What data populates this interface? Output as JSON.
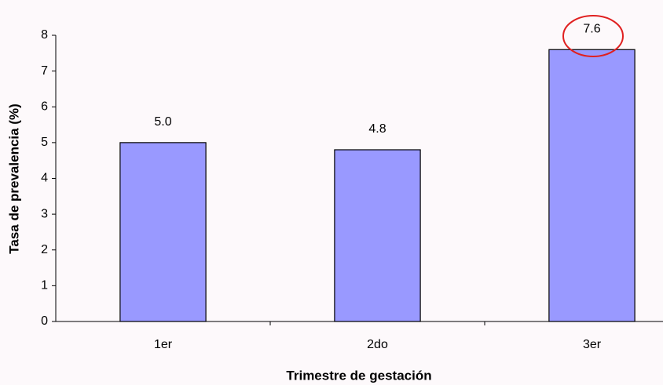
{
  "chart_data": {
    "type": "bar",
    "categories": [
      "1er",
      "2do",
      "3er"
    ],
    "values": [
      5.0,
      4.8,
      7.6
    ],
    "value_labels": [
      "5.0",
      "4.8",
      "7.6"
    ],
    "color": "#9999ff",
    "x_label": "Trimestre de gestación",
    "y_label": "Tasa de prevalencia (%)",
    "ylim": [
      0,
      8
    ],
    "yticks": [
      0,
      1,
      2,
      3,
      4,
      5,
      6,
      7,
      8
    ],
    "grid": false
  }
}
